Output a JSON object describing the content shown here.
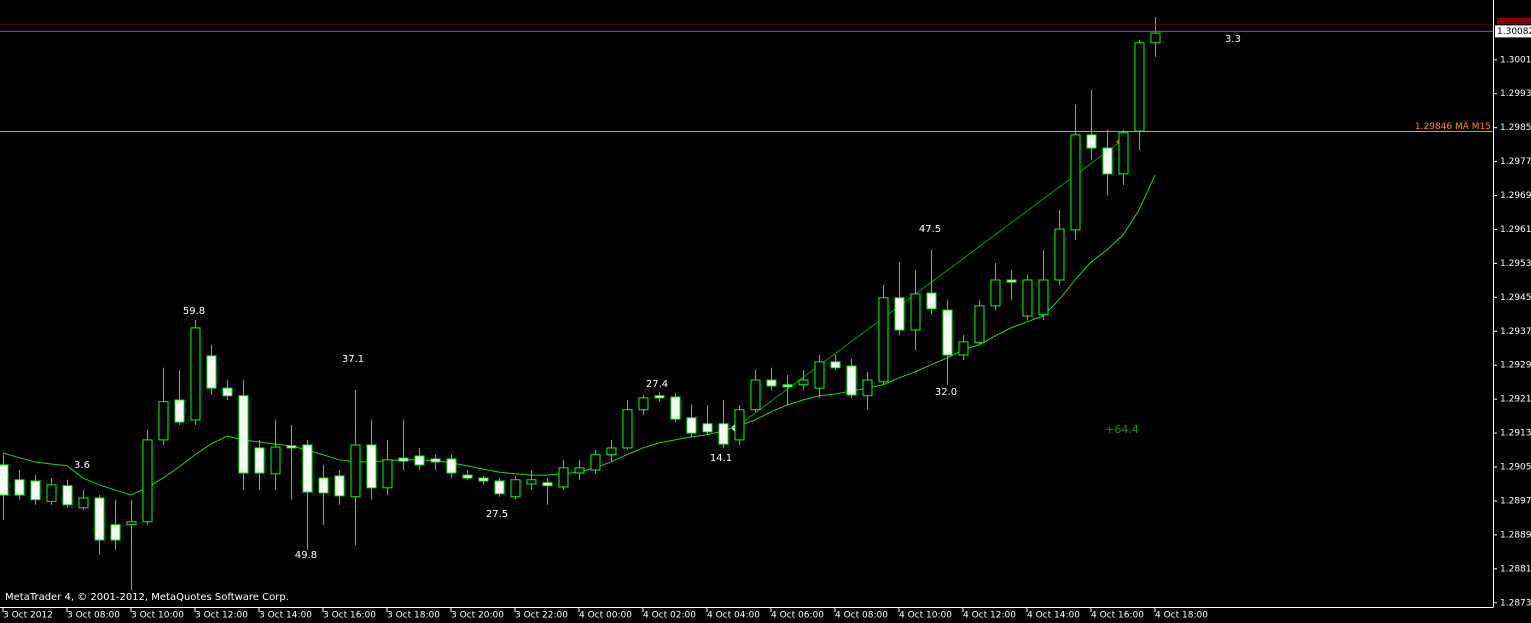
{
  "chart_data": {
    "type": "candlestick",
    "categories": [
      "3 Oct 2012",
      null,
      null,
      null,
      "3 Oct 08:00",
      null,
      null,
      null,
      "3 Oct 10:00",
      null,
      null,
      null,
      "3 Oct 12:00",
      null,
      null,
      null,
      "3 Oct 14:00",
      null,
      null,
      null,
      "3 Oct 16:00",
      null,
      null,
      null,
      "3 Oct 18:00",
      null,
      null,
      null,
      "3 Oct 20:00",
      null,
      null,
      null,
      "3 Oct 22:00",
      null,
      null,
      null,
      "4 Oct 00:00",
      null,
      null,
      null,
      "4 Oct 02:00",
      null,
      null,
      null,
      "4 Oct 04:00",
      null,
      null,
      null,
      "4 Oct 06:00",
      null,
      null,
      null,
      "4 Oct 08:00",
      null,
      null,
      null,
      "4 Oct 10:00",
      null,
      null,
      null,
      "4 Oct 12:00",
      null,
      null,
      null,
      "4 Oct 14:00",
      null,
      null,
      null,
      "4 Oct 16:00",
      null,
      null,
      null,
      "4 Oct 18:00"
    ],
    "open": [
      1.2906,
      1.29025,
      1.29022,
      1.28974,
      1.29011,
      1.28959,
      1.28982,
      1.28919,
      1.28919,
      1.28926,
      1.29119,
      1.29213,
      1.29166,
      1.29317,
      1.29241,
      1.29223,
      1.291,
      1.29039,
      1.29105,
      1.29107,
      1.29029,
      1.29034,
      1.28985,
      1.29107,
      1.29006,
      1.29076,
      1.29081,
      1.29074,
      1.29074,
      1.29036,
      1.29029,
      1.29022,
      1.28985,
      1.29015,
      1.29018,
      1.29008,
      1.29041,
      1.29048,
      1.29084,
      1.291,
      1.2919,
      1.29223,
      1.2922,
      1.29171,
      1.29157,
      1.29157,
      1.29119,
      1.2919,
      1.2926,
      1.29249,
      1.29249,
      1.29241,
      1.29303,
      1.29293,
      1.29223,
      1.29256,
      1.29454,
      1.29378,
      1.29465,
      1.29425,
      1.29319,
      1.29348,
      1.29435,
      1.29496,
      1.29411,
      1.29414,
      1.29496,
      1.29614,
      1.29838,
      1.29807,
      1.29746,
      1.29847,
      1.30055
    ],
    "high": [
      1.29084,
      1.29048,
      1.29036,
      1.29029,
      1.29025,
      1.29001,
      1.28989,
      1.28978,
      1.28978,
      1.29143,
      1.29289,
      1.29284,
      1.29402,
      1.29343,
      1.2926,
      1.2926,
      1.29119,
      1.29166,
      1.29154,
      1.29119,
      1.2906,
      1.29048,
      1.29237,
      1.29166,
      1.29119,
      1.29166,
      1.291,
      1.29084,
      1.29084,
      1.29048,
      1.29034,
      1.29029,
      1.29034,
      1.29048,
      1.29029,
      1.29072,
      1.29072,
      1.29096,
      1.29119,
      1.29213,
      1.29225,
      1.29232,
      1.2923,
      1.29202,
      1.29201,
      1.29213,
      1.29201,
      1.29284,
      1.29289,
      1.29272,
      1.29284,
      1.29319,
      1.29319,
      1.2931,
      1.29279,
      1.29484,
      1.29538,
      1.2952,
      1.29567,
      1.29449,
      1.29366,
      1.29449,
      1.29536,
      1.2952,
      1.29508,
      1.29567,
      1.29661,
      1.29909,
      1.29944,
      1.2985,
      1.2985,
      1.30062,
      1.30116
    ],
    "low": [
      1.2893,
      1.28978,
      1.28966,
      1.28966,
      1.28959,
      1.28954,
      1.28848,
      1.2886,
      1.28765,
      1.28919,
      1.29107,
      1.29154,
      1.29154,
      1.29225,
      1.29213,
      1.29001,
      1.29001,
      1.29001,
      1.28978,
      1.2886,
      1.28919,
      1.28966,
      1.28871,
      1.28978,
      1.28989,
      1.29048,
      1.29048,
      1.29048,
      1.29029,
      1.29025,
      1.29013,
      1.28985,
      1.28978,
      1.29001,
      1.28966,
      1.29001,
      1.29025,
      1.29039,
      1.29067,
      1.29096,
      1.29178,
      1.29209,
      1.29161,
      1.29124,
      1.29131,
      1.291,
      1.29107,
      1.29185,
      1.29237,
      1.29201,
      1.29237,
      1.29218,
      1.29284,
      1.29218,
      1.2919,
      1.29249,
      1.29366,
      1.29331,
      1.29414,
      1.29249,
      1.29307,
      1.29343,
      1.29425,
      1.29449,
      1.29402,
      1.29402,
      1.29484,
      1.2959,
      1.29779,
      1.29696,
      1.2972,
      1.29802,
      1.30022
    ],
    "close": [
      1.28989,
      1.28989,
      1.28978,
      1.29013,
      1.28966,
      1.28982,
      1.28883,
      1.28883,
      1.28926,
      1.29119,
      1.29209,
      1.29161,
      1.29383,
      1.29241,
      1.29223,
      1.29041,
      1.29041,
      1.29102,
      1.291,
      1.28996,
      1.28994,
      1.28987,
      1.29107,
      1.29006,
      1.29072,
      1.29069,
      1.2906,
      1.29067,
      1.29041,
      1.29029,
      1.29022,
      1.28992,
      1.29025,
      1.29025,
      1.29011,
      1.29053,
      1.29053,
      1.29084,
      1.291,
      1.2919,
      1.29218,
      1.29218,
      1.29168,
      1.29135,
      1.29138,
      1.29109,
      1.2919,
      1.2926,
      1.29246,
      1.29244,
      1.2926,
      1.29303,
      1.29289,
      1.29225,
      1.2926,
      1.29454,
      1.29378,
      1.29463,
      1.29428,
      1.29319,
      1.2935,
      1.29435,
      1.29496,
      1.29491,
      1.29496,
      1.29496,
      1.29616,
      1.29838,
      1.29807,
      1.29746,
      1.29843,
      1.30055,
      1.30078
    ],
    "up_color": "#00ff00",
    "down_color": "#00ff00",
    "up_fill": "#000000",
    "down_fill": "#ffffff",
    "ma": {
      "color": "#32cd32",
      "values": [
        1.29088,
        1.29077,
        1.29067,
        1.29062,
        1.29058,
        1.29029,
        1.29013,
        1.29001,
        1.28989,
        1.29006,
        1.29029,
        1.29055,
        1.29084,
        1.29109,
        1.29128,
        1.29119,
        1.29114,
        1.29109,
        1.29105,
        1.29095,
        1.29084,
        1.29072,
        1.29067,
        1.29067,
        1.2907,
        1.29072,
        1.29072,
        1.2907,
        1.29065,
        1.29058,
        1.2905,
        1.29043,
        1.29039,
        1.29036,
        1.29036,
        1.29039,
        1.29043,
        1.29053,
        1.29067,
        1.29084,
        1.291,
        1.29112,
        1.29119,
        1.29126,
        1.29131,
        1.2914,
        1.29152,
        1.29166,
        1.29185,
        1.29201,
        1.29213,
        1.29223,
        1.29227,
        1.29234,
        1.29241,
        1.29249,
        1.29265,
        1.29279,
        1.29296,
        1.29312,
        1.29331,
        1.29343,
        1.29364,
        1.29383,
        1.29397,
        1.29411,
        1.29449,
        1.29496,
        1.29538,
        1.29567,
        1.29602,
        1.29661,
        1.29743
      ]
    },
    "levels": [
      {
        "value": 1.30097,
        "color": "#8b0000"
      },
      {
        "value": 1.30082,
        "color": "#ff00ff"
      },
      {
        "value": {
          "value": 1.29846,
          "label": "1.29846 MA M15"
        },
        "color": "#ff8c00"
      }
    ],
    "ylim": [
      1.28725,
      1.30156
    ],
    "yticks": [
      1.30015,
      1.29935,
      1.29855,
      1.29775,
      1.29695,
      1.29615,
      1.29535,
      1.29455,
      1.29375,
      1.29295,
      1.29215,
      1.29135,
      1.29055,
      1.28975,
      1.28895,
      1.28815,
      1.28735
    ],
    "annotations": [
      "59.8",
      "37.1",
      "3.6",
      "49.8",
      "27.5",
      "27.4",
      "14.1",
      "47.5",
      "32.0",
      "3.3",
      "+64.4"
    ],
    "footer": "MetaTrader 4, © 2001-2012, MetaQuotes Software Corp."
  }
}
